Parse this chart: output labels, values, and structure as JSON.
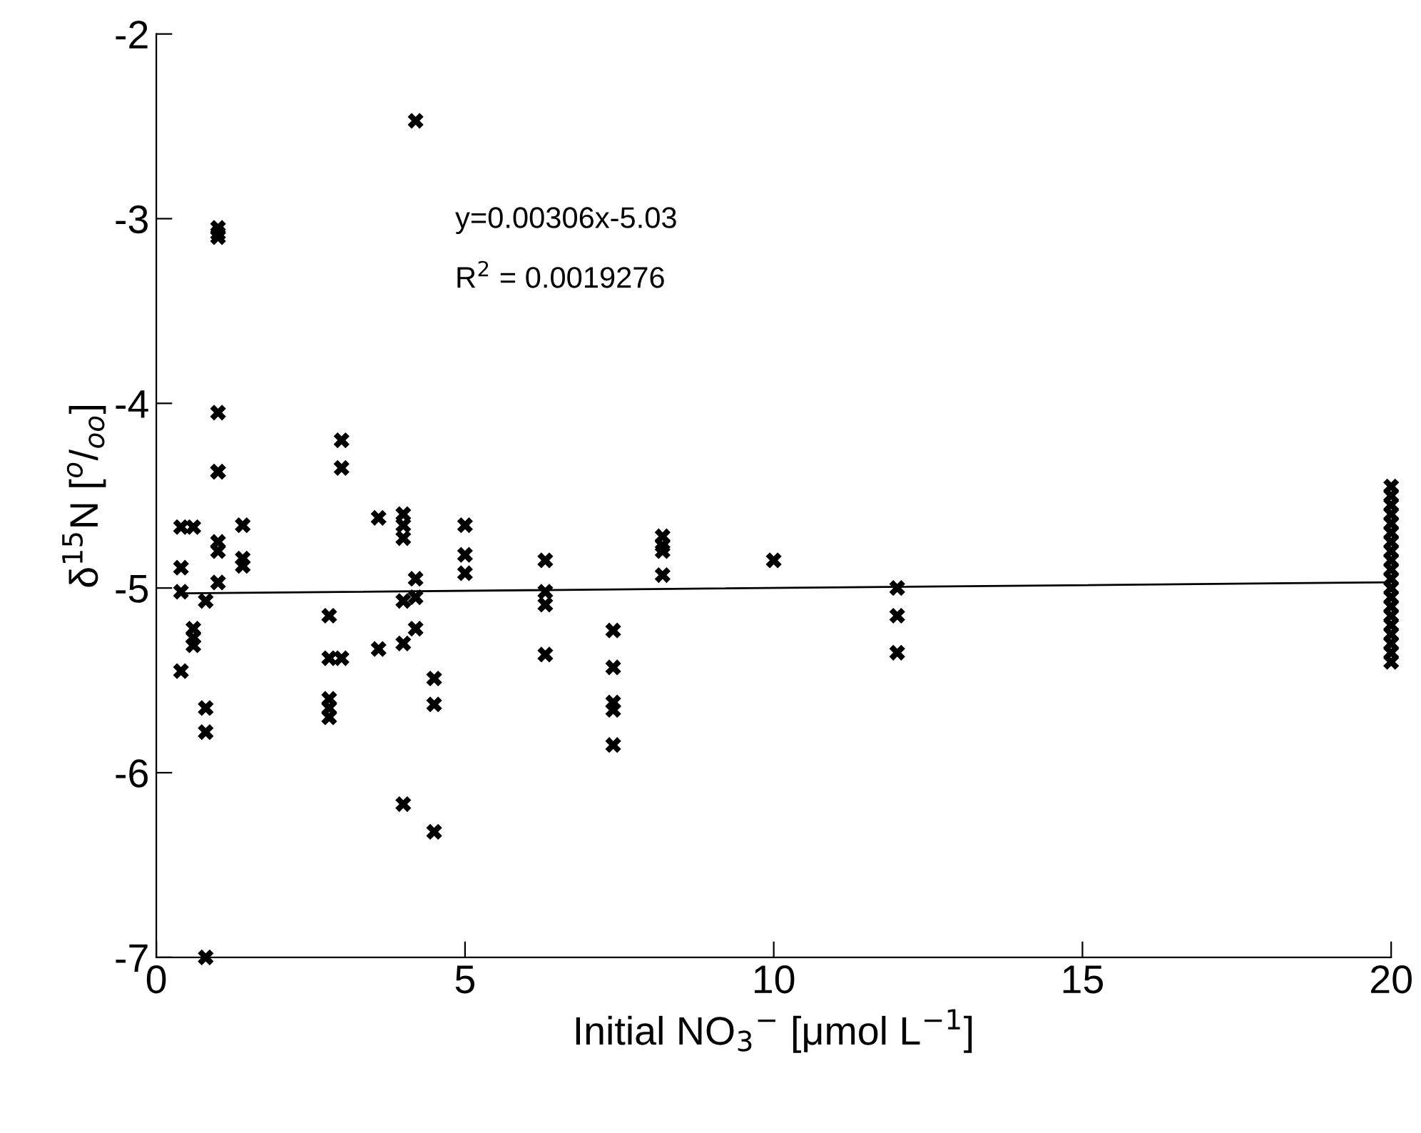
{
  "chart_data": {
    "type": "scatter",
    "xlabel": "Initial NO$_{3}$$^{−}$ [μmol L$^{−1}$]",
    "ylabel": "δ$^{15}$N [$^{o}$/$_{oo}$]",
    "xlim": [
      0,
      20
    ],
    "ylim": [
      -7,
      -2
    ],
    "xticks": [
      0,
      5,
      10,
      15,
      20
    ],
    "yticks": [
      {
        "value": -7,
        "label": "-7"
      },
      {
        "value": -6,
        "label": "-6"
      },
      {
        "value": -5,
        "label": "-5"
      },
      {
        "value": -4,
        "label": "-4"
      },
      {
        "value": -3,
        "label": "-3"
      },
      {
        "value": -2,
        "label": "-2"
      }
    ],
    "grid": false,
    "marker": "cross",
    "annotations": [
      "y=0.00306x-5.03",
      "R$^{2}$ = 0.0019276"
    ],
    "series": [
      {
        "color": "#000000",
        "x": [
          0.4,
          0.4,
          0.4,
          0.4,
          0.6,
          0.6,
          0.6,
          0.6,
          0.8,
          0.8,
          0.8,
          0.8,
          1.0,
          1.0,
          1.0,
          1.0,
          1.0,
          1.0,
          1.0,
          1.0,
          1.0,
          1.4,
          1.4,
          1.4,
          2.8,
          2.8,
          2.8,
          2.8,
          2.8,
          3.0,
          3.0,
          3.0,
          3.6,
          3.6,
          4.0,
          4.0,
          4.0,
          4.0,
          4.0,
          4.0,
          4.2,
          4.2,
          4.2,
          4.2,
          4.5,
          4.5,
          4.5,
          5.0,
          5.0,
          5.0,
          6.3,
          6.3,
          6.3,
          6.3,
          7.4,
          7.4,
          7.4,
          7.4,
          7.4,
          8.2,
          8.2,
          8.2,
          8.2,
          10,
          12,
          12,
          12,
          20,
          20,
          20,
          20,
          20,
          20,
          20,
          20,
          20,
          20,
          20,
          20,
          20,
          20,
          20,
          20,
          20,
          20,
          20,
          20
        ],
        "values": [
          -4.67,
          -4.89,
          -5.02,
          -5.45,
          -4.67,
          -5.22,
          -5.27,
          -5.31,
          -5.07,
          -5.65,
          -5.78,
          -7.0,
          -3.05,
          -3.08,
          -3.1,
          -4.05,
          -4.37,
          -4.37,
          -4.75,
          -4.8,
          -4.97,
          -4.66,
          -4.84,
          -4.88,
          -5.15,
          -5.38,
          -5.6,
          -5.65,
          -5.7,
          -4.2,
          -4.35,
          -5.38,
          -4.62,
          -5.33,
          -4.6,
          -4.66,
          -4.73,
          -5.07,
          -5.3,
          -6.17,
          -2.47,
          -4.95,
          -5.05,
          -5.22,
          -5.49,
          -5.63,
          -6.32,
          -4.66,
          -4.82,
          -4.92,
          -4.85,
          -5.02,
          -5.09,
          -5.36,
          -5.23,
          -5.43,
          -5.62,
          -5.66,
          -5.85,
          -4.72,
          -4.77,
          -4.8,
          -4.93,
          -4.85,
          -5.0,
          -5.15,
          -5.35,
          -4.45,
          -4.5,
          -4.55,
          -4.6,
          -4.65,
          -4.7,
          -4.75,
          -4.8,
          -4.85,
          -4.9,
          -4.95,
          -5.0,
          -5.05,
          -5.1,
          -5.15,
          -5.2,
          -5.25,
          -5.3,
          -5.35,
          -5.4
        ]
      },
      {
        "type": "line",
        "color": "#000000",
        "marker": "none",
        "x": [
          0.4,
          20
        ],
        "values": [
          -5.029,
          -4.969
        ]
      }
    ]
  }
}
